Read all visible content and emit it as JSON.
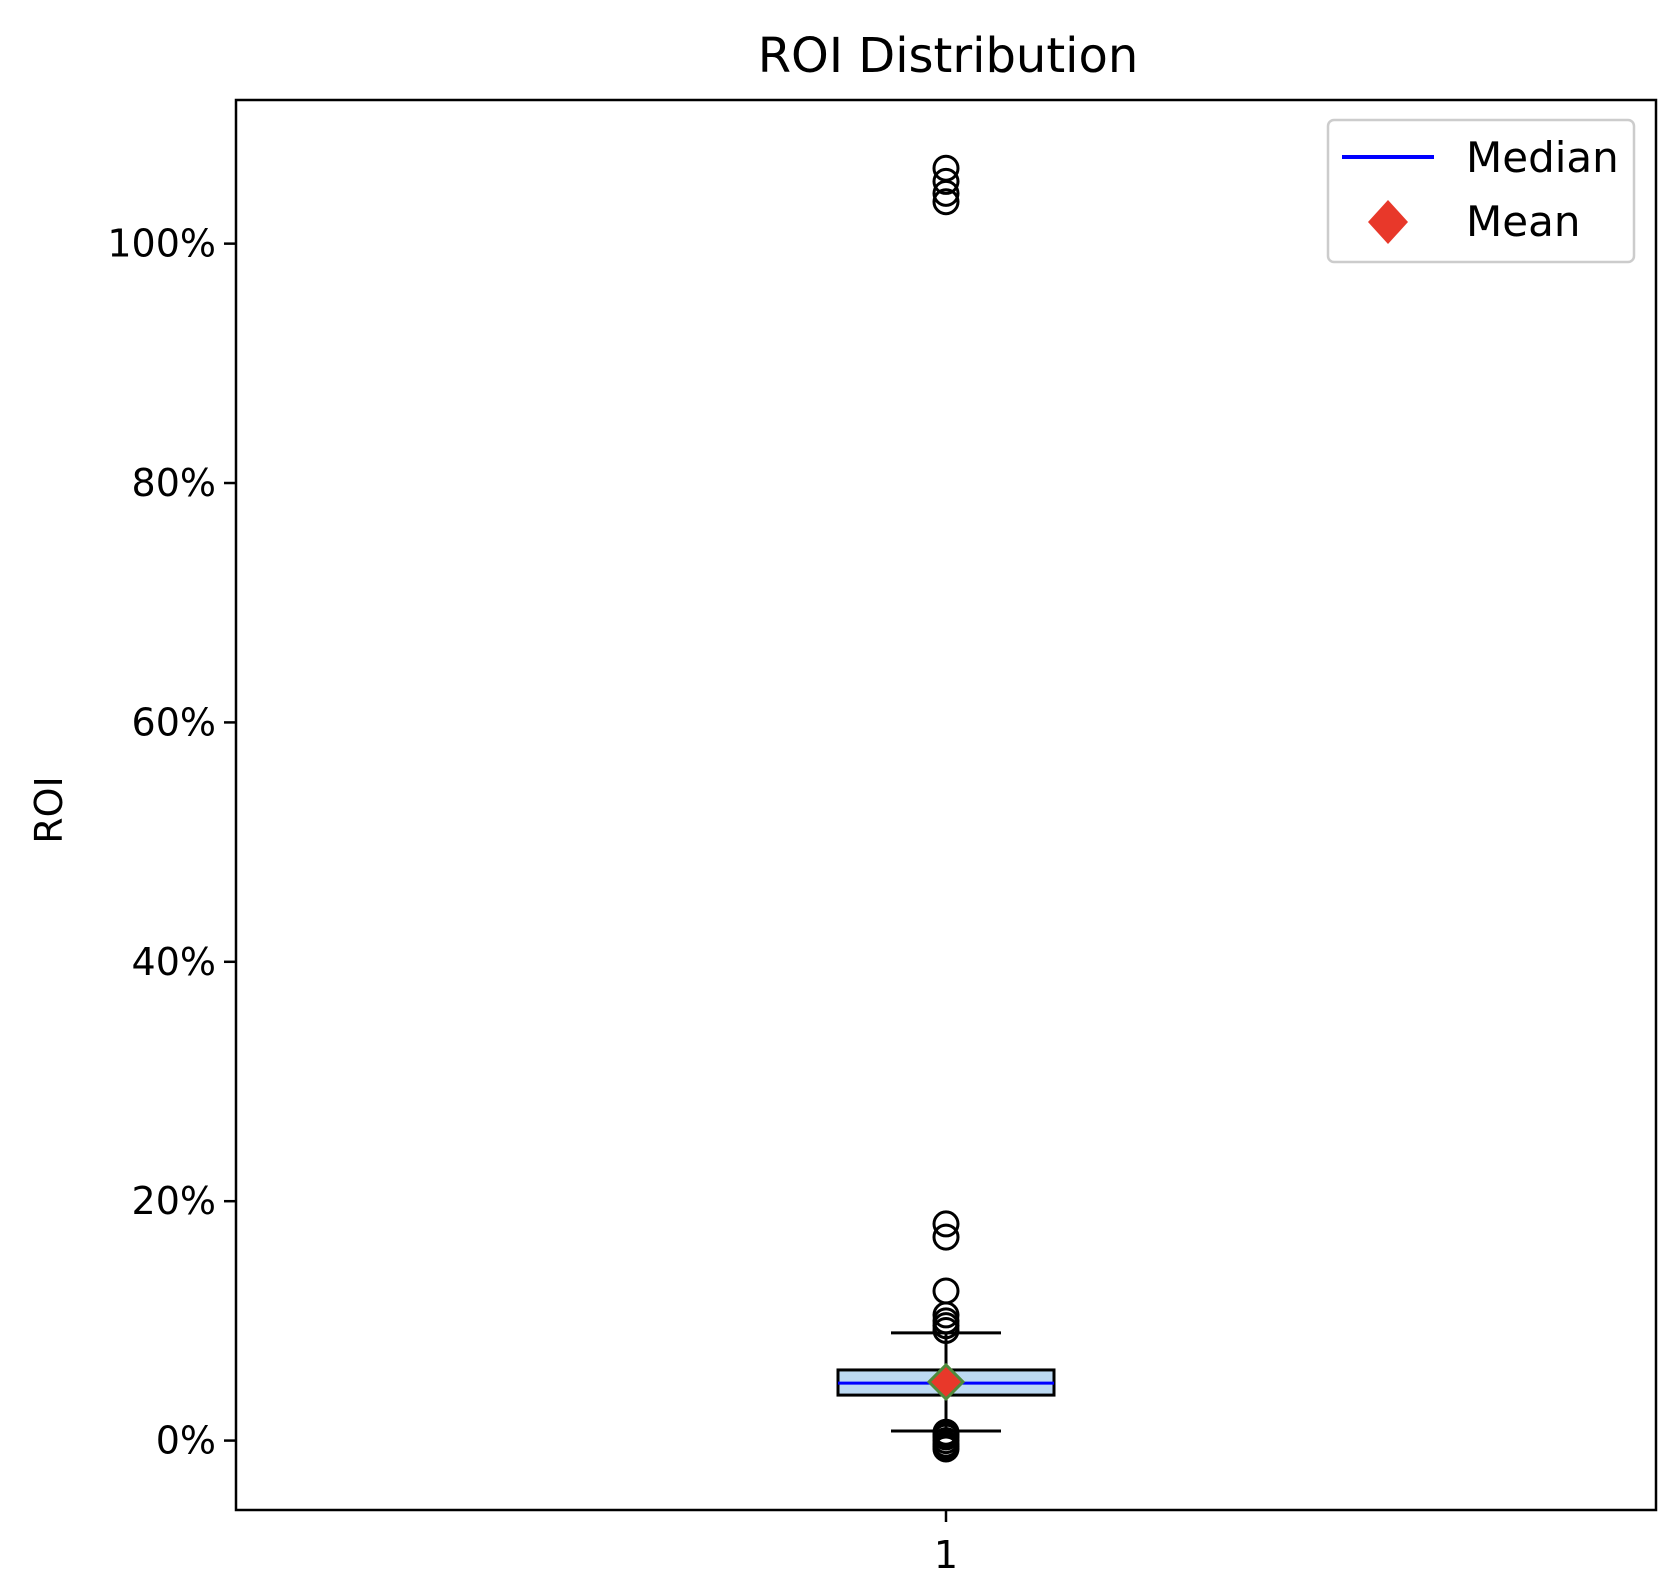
{
  "chart_data": {
    "type": "box",
    "title": "ROI Distribution",
    "xlabel": "",
    "ylabel": "ROI",
    "categories": [
      "1"
    ],
    "ylim": [
      -5.8,
      112
    ],
    "yticks": [
      0,
      20,
      40,
      60,
      80,
      100
    ],
    "ytick_labels": [
      "0%",
      "20%",
      "40%",
      "60%",
      "80%",
      "100%"
    ],
    "grid": false,
    "legend": {
      "placement": "top-right",
      "entries": [
        {
          "label": "Median",
          "marker": "line",
          "color": "#0000ff"
        },
        {
          "label": "Mean",
          "marker": "diamond",
          "color": "#e8382a"
        }
      ]
    },
    "boxes": [
      {
        "category": "1",
        "whisker_low": 0.8,
        "q1": 3.8,
        "median": 4.8,
        "q3": 5.9,
        "whisker_high": 9.0,
        "mean": 4.9,
        "outliers": [
          -0.7,
          -0.5,
          -0.3,
          0.0,
          0.3,
          0.5,
          0.7,
          9.2,
          9.6,
          10.0,
          10.5,
          12.5,
          17.0,
          18.1,
          103.5,
          104.2,
          105.2,
          106.3
        ]
      }
    ],
    "colors": {
      "box_fill": "#bcd9f2",
      "box_edge": "#000000",
      "median": "#0000ff",
      "mean_fill": "#e8382a",
      "mean_edge": "#4f8a3c",
      "outlier": "#000000"
    }
  }
}
